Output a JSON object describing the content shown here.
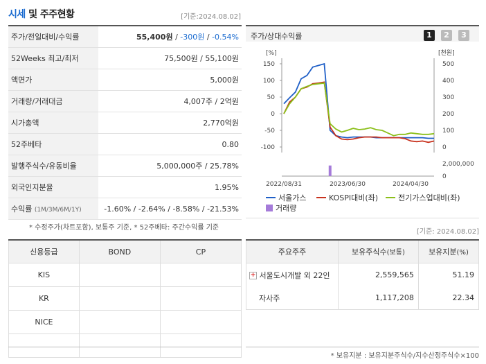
{
  "header": {
    "title_part1": "시세",
    "title_part2": " 및 주주현황",
    "base_date": "[기준:2024.08.02]"
  },
  "info_rows": [
    {
      "label": "주가/전일대비/수익률",
      "v1": "55,400원",
      "sep1": " / ",
      "v2": "-300원",
      "sep2": " / ",
      "v3": "-0.54%"
    },
    {
      "label": "52Weeks 최고/최저",
      "value": "75,500원 / 55,100원"
    },
    {
      "label": "액면가",
      "value": "5,000원"
    },
    {
      "label": "거래량/거래대금",
      "value": "4,007주 / 2억원"
    },
    {
      "label": "시가총액",
      "value": "2,770억원"
    },
    {
      "label": "52주베타",
      "value": "0.80"
    },
    {
      "label": "발행주식수/유동비율",
      "value": "5,000,000주 / 25.78%"
    },
    {
      "label": "외국인지분율",
      "value": "1.95%"
    },
    {
      "label": "수익률",
      "label_small": "(1M/3M/6M/1Y)",
      "value": "-1.60% / -2.64% / -8.58% / -21.53%"
    }
  ],
  "info_note": "* 수정주가(차트포함), 보통주 기준, * 52주베타: 주간수익률 기준",
  "chart_panel": {
    "title": "주가/상대수익률",
    "buttons": [
      "1",
      "2",
      "3"
    ],
    "left_unit": "[%]",
    "right_unit": "[천원]"
  },
  "chart_data": {
    "type": "line",
    "x_ticks": [
      "2022/08/31",
      "2023/06/30",
      "2024/04/30"
    ],
    "y_left_ticks": [
      "150",
      "100",
      "50",
      "0",
      "-50",
      "-100"
    ],
    "y_right_ticks": [
      "500",
      "400",
      "300",
      "200",
      "100",
      "0"
    ],
    "volume_ticks": [
      "2,000,000",
      "0"
    ],
    "ylim_left": [
      -100,
      150
    ],
    "ylim_right": [
      0,
      500
    ],
    "series": [
      {
        "name": "서울가스",
        "color": "#1f5fc7",
        "axis": "left",
        "values": [
          30,
          48,
          65,
          105,
          115,
          140,
          145,
          150,
          -50,
          -66,
          -70,
          -72,
          -70,
          -70,
          -70,
          -70,
          -72,
          -72,
          -72,
          -72,
          -72,
          -72,
          -72,
          -72,
          -72,
          -74,
          -74
        ]
      },
      {
        "name": "KOSPI대비(좌)",
        "color": "#c8321e",
        "axis": "left",
        "values": [
          0,
          35,
          50,
          75,
          80,
          90,
          92,
          95,
          -40,
          -66,
          -76,
          -78,
          -76,
          -72,
          -70,
          -70,
          -70,
          -72,
          -72,
          -72,
          -72,
          -75,
          -82,
          -84,
          -82,
          -86,
          -82
        ]
      },
      {
        "name": "전기가스업대비(좌)",
        "color": "#8bbf1a",
        "axis": "left",
        "values": [
          0,
          30,
          50,
          75,
          82,
          88,
          90,
          92,
          -30,
          -46,
          -55,
          -50,
          -44,
          -48,
          -46,
          -42,
          -48,
          -50,
          -58,
          -66,
          -62,
          -62,
          -58,
          -60,
          -62,
          -62,
          -60
        ]
      }
    ],
    "volume": {
      "name": "거래량",
      "color": "#a57bd9",
      "spike_index": 8,
      "spike_value": 1800000
    }
  },
  "legend": [
    "서울가스",
    "KOSPI대비(좌)",
    "전기가스업대비(좌)",
    "거래량"
  ],
  "right_base_date": "[기준: 2024.08.02]",
  "credit": {
    "headers": [
      "신용등급",
      "BOND",
      "CP"
    ],
    "rows": [
      [
        "KIS",
        "",
        ""
      ],
      [
        "KR",
        "",
        ""
      ],
      [
        "NICE",
        "",
        ""
      ],
      [
        "",
        "",
        ""
      ]
    ]
  },
  "shareholders": {
    "headers": [
      "주요주주",
      "보유주식수",
      "(보통)",
      "보유지분",
      "(%)"
    ],
    "rows": [
      {
        "name": "서울도시개발 외 22인",
        "shares": "2,559,565",
        "pct": "51.19",
        "expand": "+"
      },
      {
        "name": "자사주",
        "shares": "1,117,208",
        "pct": "22.34"
      }
    ],
    "note": "* 보유지분 : 보유지분주식수/지수산정주식수×100"
  }
}
